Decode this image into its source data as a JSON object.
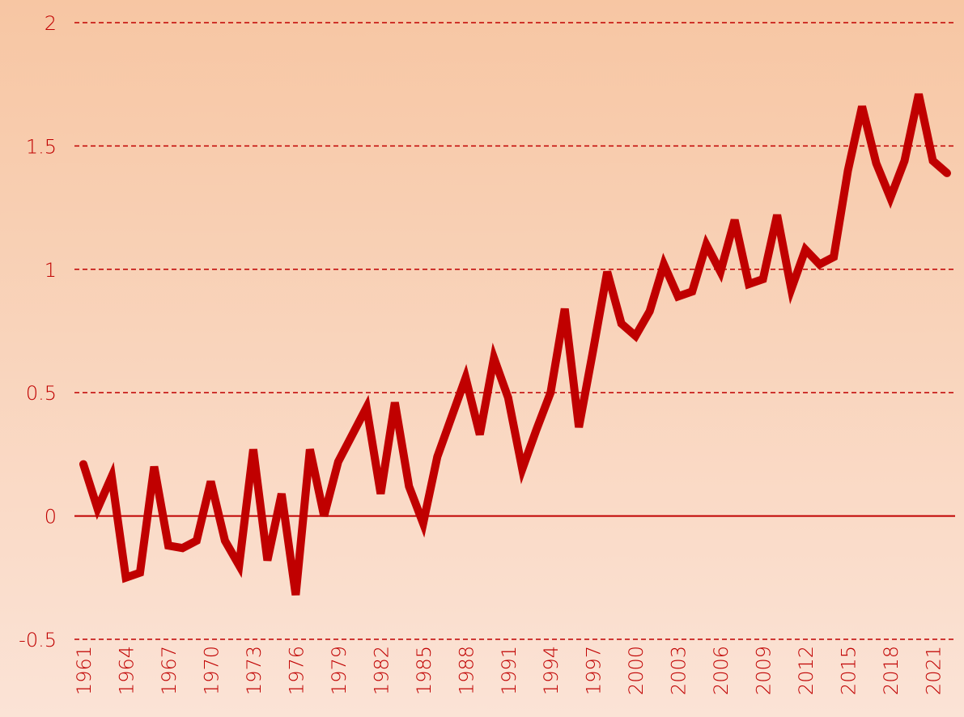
{
  "chart_data": {
    "type": "line",
    "x": [
      1961,
      1962,
      1963,
      1964,
      1965,
      1966,
      1967,
      1968,
      1969,
      1970,
      1971,
      1972,
      1973,
      1974,
      1975,
      1976,
      1977,
      1978,
      1979,
      1980,
      1981,
      1982,
      1983,
      1984,
      1985,
      1986,
      1987,
      1988,
      1989,
      1990,
      1991,
      1992,
      1993,
      1994,
      1995,
      1996,
      1997,
      1998,
      1999,
      2000,
      2001,
      2002,
      2003,
      2004,
      2005,
      2006,
      2007,
      2008,
      2009,
      2010,
      2011,
      2012,
      2013,
      2014,
      2015,
      2016,
      2017,
      2018,
      2019,
      2020,
      2021,
      2022
    ],
    "series": [
      {
        "color": "#c00000",
        "values": [
          0.21,
          0.03,
          0.16,
          -0.25,
          -0.23,
          0.2,
          -0.12,
          -0.13,
          -0.1,
          0.14,
          -0.1,
          -0.2,
          0.27,
          -0.18,
          0.09,
          -0.32,
          0.27,
          0.0,
          0.22,
          0.33,
          0.44,
          0.09,
          0.46,
          0.12,
          -0.03,
          0.24,
          0.4,
          0.56,
          0.33,
          0.64,
          0.48,
          0.19,
          0.35,
          0.5,
          0.84,
          0.36,
          0.67,
          0.99,
          0.78,
          0.73,
          0.83,
          1.02,
          0.89,
          0.91,
          1.1,
          0.99,
          1.2,
          0.94,
          0.96,
          1.22,
          0.92,
          1.08,
          1.02,
          1.05,
          1.4,
          1.66,
          1.43,
          1.29,
          1.44,
          1.71,
          1.44,
          1.39
        ]
      }
    ],
    "xlim": [
      1961,
      2022
    ],
    "xticks": [
      1961,
      1964,
      1967,
      1970,
      1973,
      1976,
      1979,
      1982,
      1985,
      1988,
      1991,
      1994,
      1997,
      2000,
      2003,
      2006,
      2009,
      2012,
      2015,
      2018,
      2021
    ],
    "ylim": [
      -0.5,
      2
    ],
    "yticks": [
      -0.5,
      0,
      0.5,
      1,
      1.5,
      2
    ],
    "grid": true
  }
}
